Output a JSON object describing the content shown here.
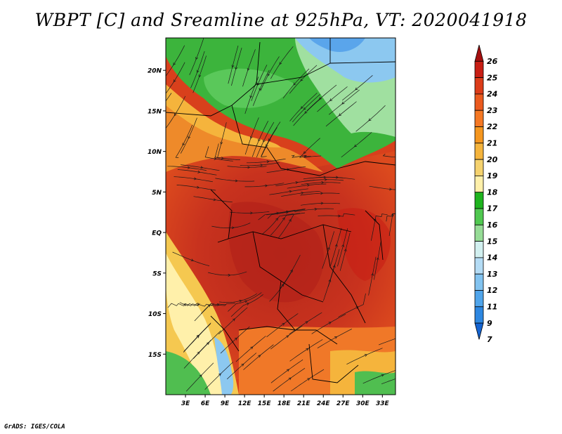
{
  "title": "WBPT [C] and Sreamline at 925hPa, VT: 2020041918",
  "credit": "GrADS: IGES/COLA",
  "map": {
    "lat_range": [
      -20,
      24
    ],
    "lon_range": [
      0,
      35
    ],
    "lat_ticks": [
      "20N",
      "15N",
      "10N",
      "5N",
      "EQ",
      "5S",
      "10S",
      "15S"
    ],
    "lon_ticks": [
      "3E",
      "6E",
      "9E",
      "12E",
      "15E",
      "18E",
      "21E",
      "24E",
      "27E",
      "30E",
      "33E"
    ],
    "regions": [
      {
        "name": "north-green-zone",
        "color": "#3cb43c"
      },
      {
        "name": "north-east-blue-zone",
        "color": "#8cc8f0"
      },
      {
        "name": "central-red-zone",
        "color": "#c8321e"
      },
      {
        "name": "south-west-yellow-zone",
        "color": "#f5c850"
      },
      {
        "name": "south-east-green-zone",
        "color": "#50be50"
      }
    ]
  },
  "colorbar": {
    "labels": [
      "26",
      "25",
      "24",
      "23",
      "22",
      "21",
      "20",
      "19",
      "18",
      "17",
      "16",
      "15",
      "14",
      "13",
      "12",
      "11",
      "9",
      "7"
    ],
    "colors": [
      "#a50f0f",
      "#c81e14",
      "#dc3c19",
      "#eb5a1e",
      "#f57823",
      "#f5961e",
      "#f5b43c",
      "#f5d26e",
      "#fff0aa",
      "#1eb41e",
      "#50c850",
      "#96dc96",
      "#d2f0f0",
      "#b4dcf5",
      "#82c3f0",
      "#50a5eb",
      "#2d87e1",
      "#1464d2"
    ]
  }
}
